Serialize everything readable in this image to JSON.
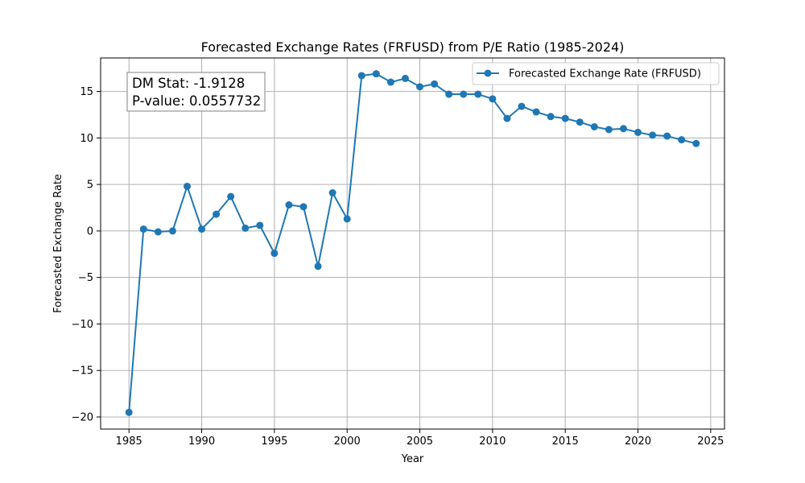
{
  "chart_data": {
    "type": "line",
    "title": "Forecasted Exchange Rates (FRFUSD) from P/E Ratio (1985-2024)",
    "xlabel": "Year",
    "ylabel": "Forecasted Exchange Rate",
    "xlim": [
      1983.05,
      2025.95
    ],
    "ylim": [
      -21.3,
      18.6
    ],
    "xticks": [
      1985,
      1990,
      1995,
      2000,
      2005,
      2010,
      2015,
      2020,
      2025
    ],
    "yticks": [
      -20,
      -15,
      -10,
      -5,
      0,
      5,
      10,
      15
    ],
    "grid": true,
    "legend_position": "top-right",
    "series": [
      {
        "name": "Forecasted Exchange Rate (FRFUSD)",
        "color": "#1f77b4",
        "marker": "circle",
        "x": [
          1985,
          1986,
          1987,
          1988,
          1989,
          1990,
          1991,
          1992,
          1993,
          1994,
          1995,
          1996,
          1997,
          1998,
          1999,
          2000,
          2001,
          2002,
          2003,
          2004,
          2005,
          2006,
          2007,
          2008,
          2009,
          2010,
          2011,
          2012,
          2013,
          2014,
          2015,
          2016,
          2017,
          2018,
          2019,
          2020,
          2021,
          2022,
          2023,
          2024
        ],
        "y": [
          -19.5,
          0.2,
          -0.1,
          0.0,
          4.8,
          0.2,
          1.8,
          3.7,
          0.3,
          0.6,
          -2.4,
          2.8,
          2.6,
          -3.8,
          4.1,
          1.3,
          16.7,
          16.9,
          16.0,
          16.4,
          15.5,
          15.8,
          14.7,
          14.7,
          14.7,
          14.2,
          12.1,
          13.4,
          12.8,
          12.3,
          12.1,
          11.7,
          11.2,
          10.9,
          11.0,
          10.6,
          10.3,
          10.2,
          9.8,
          9.4
        ]
      }
    ],
    "annotation": {
      "dm_stat": "DM Stat: -1.9128",
      "p_value": "P-value: 0.0557732"
    }
  }
}
